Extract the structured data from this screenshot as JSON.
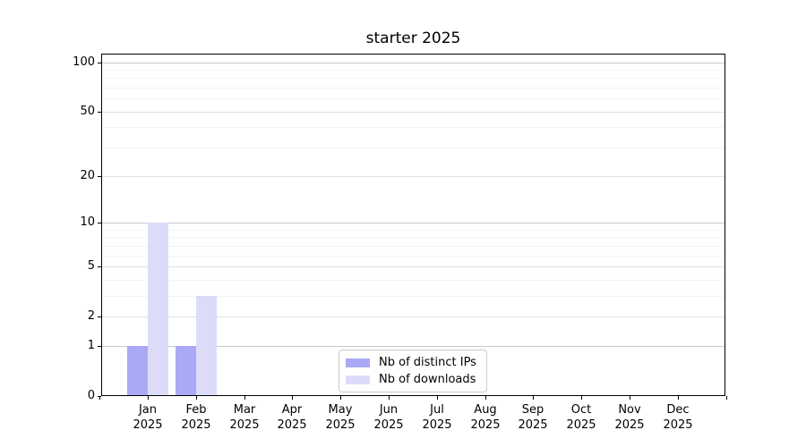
{
  "chart_data": {
    "type": "bar",
    "title": "starter 2025",
    "categories": [
      "Jan",
      "Feb",
      "Mar",
      "Apr",
      "May",
      "Jun",
      "Jul",
      "Aug",
      "Sep",
      "Oct",
      "Nov",
      "Dec"
    ],
    "year_label": "2025",
    "series": [
      {
        "name": "Nb of distinct IPs",
        "color": "#a9a9f6",
        "values": [
          1,
          1,
          0,
          0,
          0,
          0,
          0,
          0,
          0,
          0,
          0,
          0
        ]
      },
      {
        "name": "Nb of downloads",
        "color": "#dcdcf9",
        "values": [
          10,
          3,
          0,
          0,
          0,
          0,
          0,
          0,
          0,
          0,
          0,
          0
        ]
      }
    ],
    "y_axis": {
      "scale": "log1p",
      "ylim": [
        0,
        100
      ],
      "major_ticks": [
        0,
        1,
        2,
        5,
        10,
        20,
        50,
        100
      ],
      "minor_ticks": [
        3,
        4,
        6,
        7,
        8,
        9,
        30,
        40,
        60,
        70,
        80,
        90
      ]
    },
    "x_axis": {
      "tick_label_format": "Month over Year, two lines"
    },
    "legend": {
      "entries": [
        "Nb of distinct IPs",
        "Nb of downloads"
      ],
      "position": "lower center"
    },
    "grid": true
  },
  "colors": {
    "background": "#ffffff",
    "axis": "#000000",
    "grid_decade": "#c9c9c9",
    "grid_major": "#e1e1e1",
    "grid_minor": "#f3f3f3",
    "legend_border": "#cccccc"
  }
}
